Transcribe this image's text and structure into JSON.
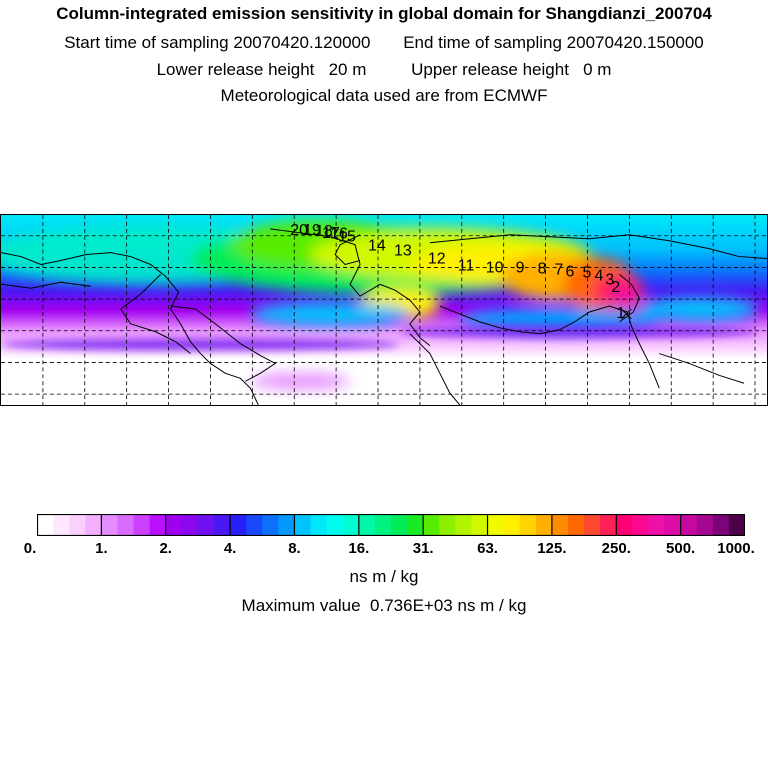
{
  "header": {
    "title": "Column-integrated emission sensitivity in global domain for Shangdianzi_200704",
    "start_label": "Start time of sampling",
    "start_value": "20070420.120000",
    "end_label": "End time of sampling",
    "end_value": "20070420.150000",
    "lower_label": "Lower release height",
    "lower_value": "20 m",
    "upper_label": "Upper release height",
    "upper_value": "0 m",
    "met_text": "Meteorological data used are from ECMWF"
  },
  "map": {
    "trajectory_labels": [
      "20",
      "19",
      "18",
      "17",
      "16",
      "15",
      "14",
      "13",
      "12",
      "11",
      "10",
      "9",
      "8",
      "7",
      "6",
      "5",
      "4",
      "3",
      "2",
      "1"
    ],
    "grid": "dashed 30° lat/lon"
  },
  "legend": {
    "tick_labels": [
      "0.",
      "1.",
      "2.",
      "4.",
      "8.",
      "16.",
      "31.",
      "63.",
      "125.",
      "250.",
      "500.",
      "1000."
    ],
    "colors": [
      "#ffffff",
      "#ffe8ff",
      "#fbd0ff",
      "#f4b0ff",
      "#e58cff",
      "#d96bff",
      "#cc40ff",
      "#bb10ff",
      "#a000f0",
      "#8a08ec",
      "#6e10f0",
      "#4a18f4",
      "#2820f8",
      "#1848fa",
      "#0c70fc",
      "#0298fc",
      "#00c2fc",
      "#00e8fa",
      "#00fcee",
      "#00fcd0",
      "#00f8a8",
      "#00f280",
      "#00ec58",
      "#18ea24",
      "#58ec00",
      "#8cf000",
      "#b2f400",
      "#d2f800",
      "#f0fa00",
      "#fff000",
      "#ffd400",
      "#ffb000",
      "#ff8c00",
      "#ff6800",
      "#ff4830",
      "#ff2058",
      "#ff0074",
      "#fa0890",
      "#ee10a8",
      "#dc0ca8",
      "#c408a0",
      "#a40890",
      "#7c0478",
      "#4c0048"
    ],
    "unit": "ns m / kg",
    "max_label": "Maximum value",
    "max_value": "0.736E+03",
    "max_unit": "ns m / kg"
  }
}
